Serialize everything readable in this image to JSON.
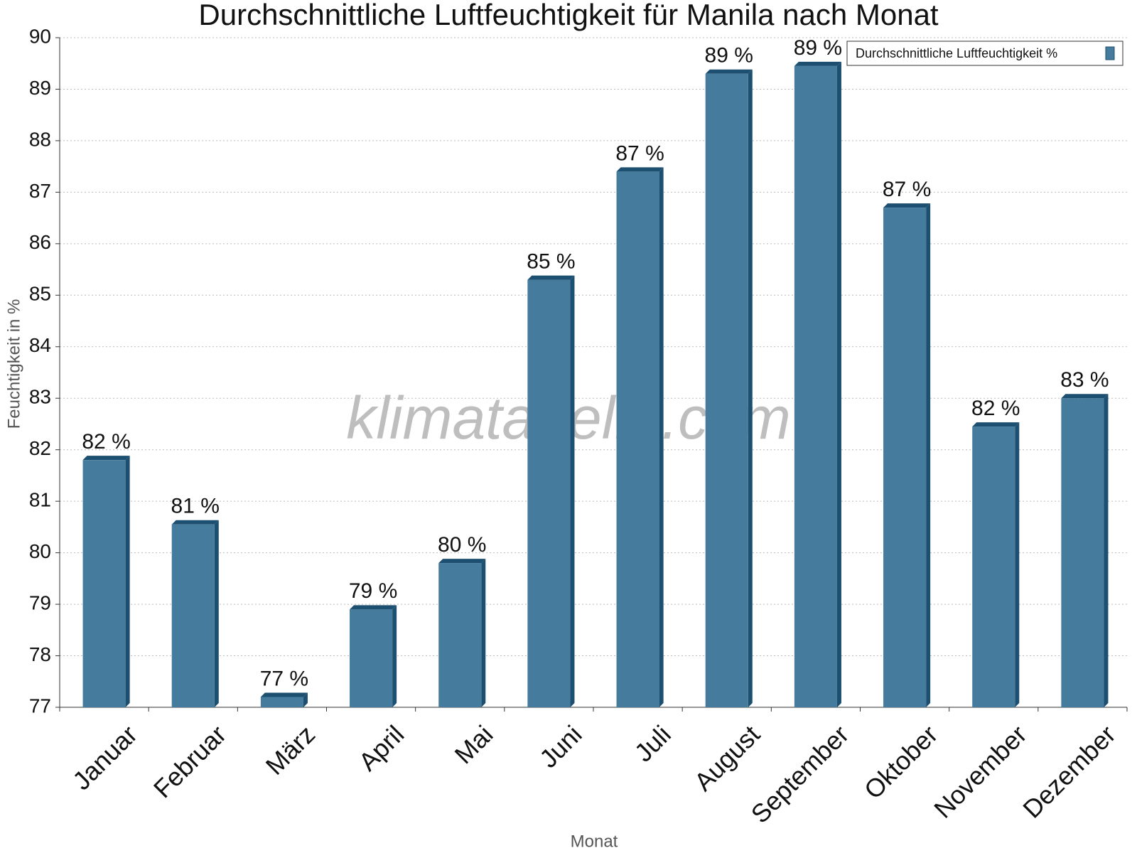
{
  "chart_data": {
    "type": "bar",
    "title": "Durchschnittliche Luftfeuchtigkeit für Manila nach Monat",
    "x_label": "Monat",
    "y_label": "Feuchtigkeit in %",
    "watermark": "klimatabelle.com",
    "categories": [
      "Januar",
      "Februar",
      "März",
      "April",
      "Mai",
      "Juni",
      "Juli",
      "August",
      "September",
      "Oktober",
      "November",
      "Dezember"
    ],
    "series": [
      {
        "name": "Durchschnittliche Luftfeuchtigkeit %",
        "color": "#457b9d",
        "values": [
          81.8,
          80.55,
          77.2,
          78.9,
          79.8,
          85.3,
          87.4,
          89.3,
          89.45,
          86.7,
          82.45,
          83.0
        ],
        "value_labels": [
          "82 %",
          "81 %",
          "77 %",
          "79 %",
          "80 %",
          "85 %",
          "87 %",
          "89 %",
          "89 %",
          "87 %",
          "82 %",
          "83 %"
        ]
      }
    ],
    "ylim": [
      77,
      90
    ],
    "yticks": [
      77,
      78,
      79,
      80,
      81,
      82,
      83,
      84,
      85,
      86,
      87,
      88,
      89,
      90
    ],
    "grid": true,
    "legend": "top-right"
  }
}
